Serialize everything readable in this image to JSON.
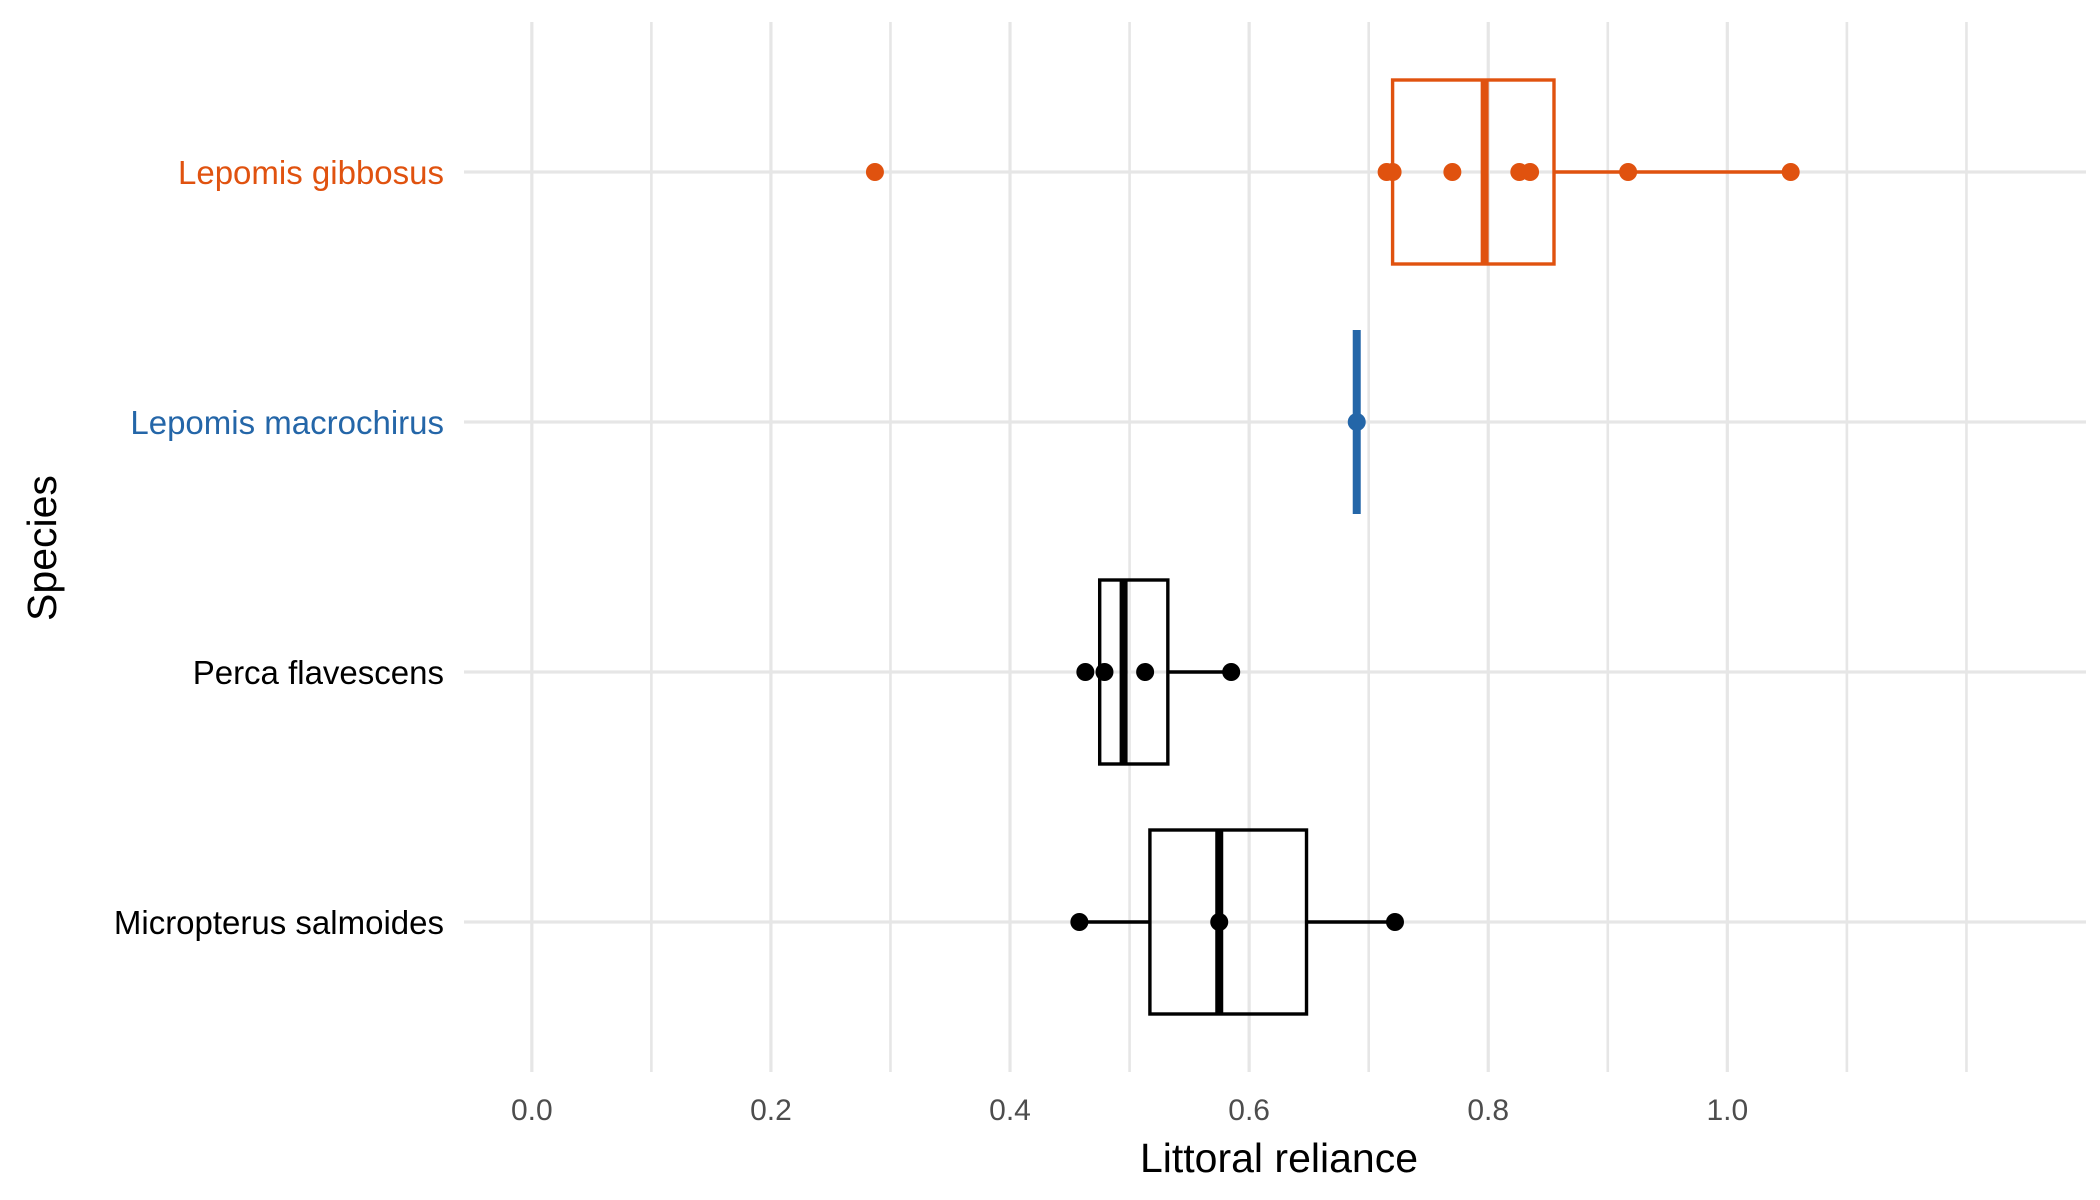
{
  "chart_data": {
    "type": "boxplot",
    "orientation": "horizontal",
    "xlabel": "Littoral reliance",
    "ylabel": "Species",
    "xlim": [
      -0.04,
      1.3
    ],
    "x_ticks": [
      0.0,
      0.2,
      0.4,
      0.6,
      0.8,
      1.0
    ],
    "x_tick_labels": [
      "0.0",
      "0.2",
      "0.4",
      "0.6",
      "0.8",
      "1.0"
    ],
    "x_minor_ticks": [
      0.1,
      0.3,
      0.5,
      0.7,
      0.9,
      1.1,
      1.2
    ],
    "grid": true,
    "legend": "none",
    "series": [
      {
        "category": "Lepomis gibbosus",
        "color": "#e0520f",
        "box": {
          "whisker_low": 0.72,
          "q1": 0.72,
          "median": 0.797,
          "q3": 0.855,
          "whisker_high": 1.053
        },
        "points": [
          0.287,
          0.715,
          0.72,
          0.77,
          0.826,
          0.835,
          0.917,
          1.053
        ]
      },
      {
        "category": "Lepomis macrochirus",
        "color": "#2466a8",
        "box": {
          "whisker_low": 0.69,
          "q1": 0.69,
          "median": 0.69,
          "q3": 0.69,
          "whisker_high": 0.69
        },
        "points": [
          0.69
        ]
      },
      {
        "category": "Perca flavescens",
        "color": "#000000",
        "box": {
          "whisker_low": 0.475,
          "q1": 0.475,
          "median": 0.495,
          "q3": 0.532,
          "whisker_high": 0.585
        },
        "points": [
          0.463,
          0.479,
          0.513,
          0.585
        ]
      },
      {
        "category": "Micropterus salmoides",
        "color": "#000000",
        "box": {
          "whisker_low": 0.458,
          "q1": 0.517,
          "median": 0.575,
          "q3": 0.648,
          "whisker_high": 0.722
        },
        "points": [
          0.458,
          0.575,
          0.722
        ]
      }
    ]
  }
}
